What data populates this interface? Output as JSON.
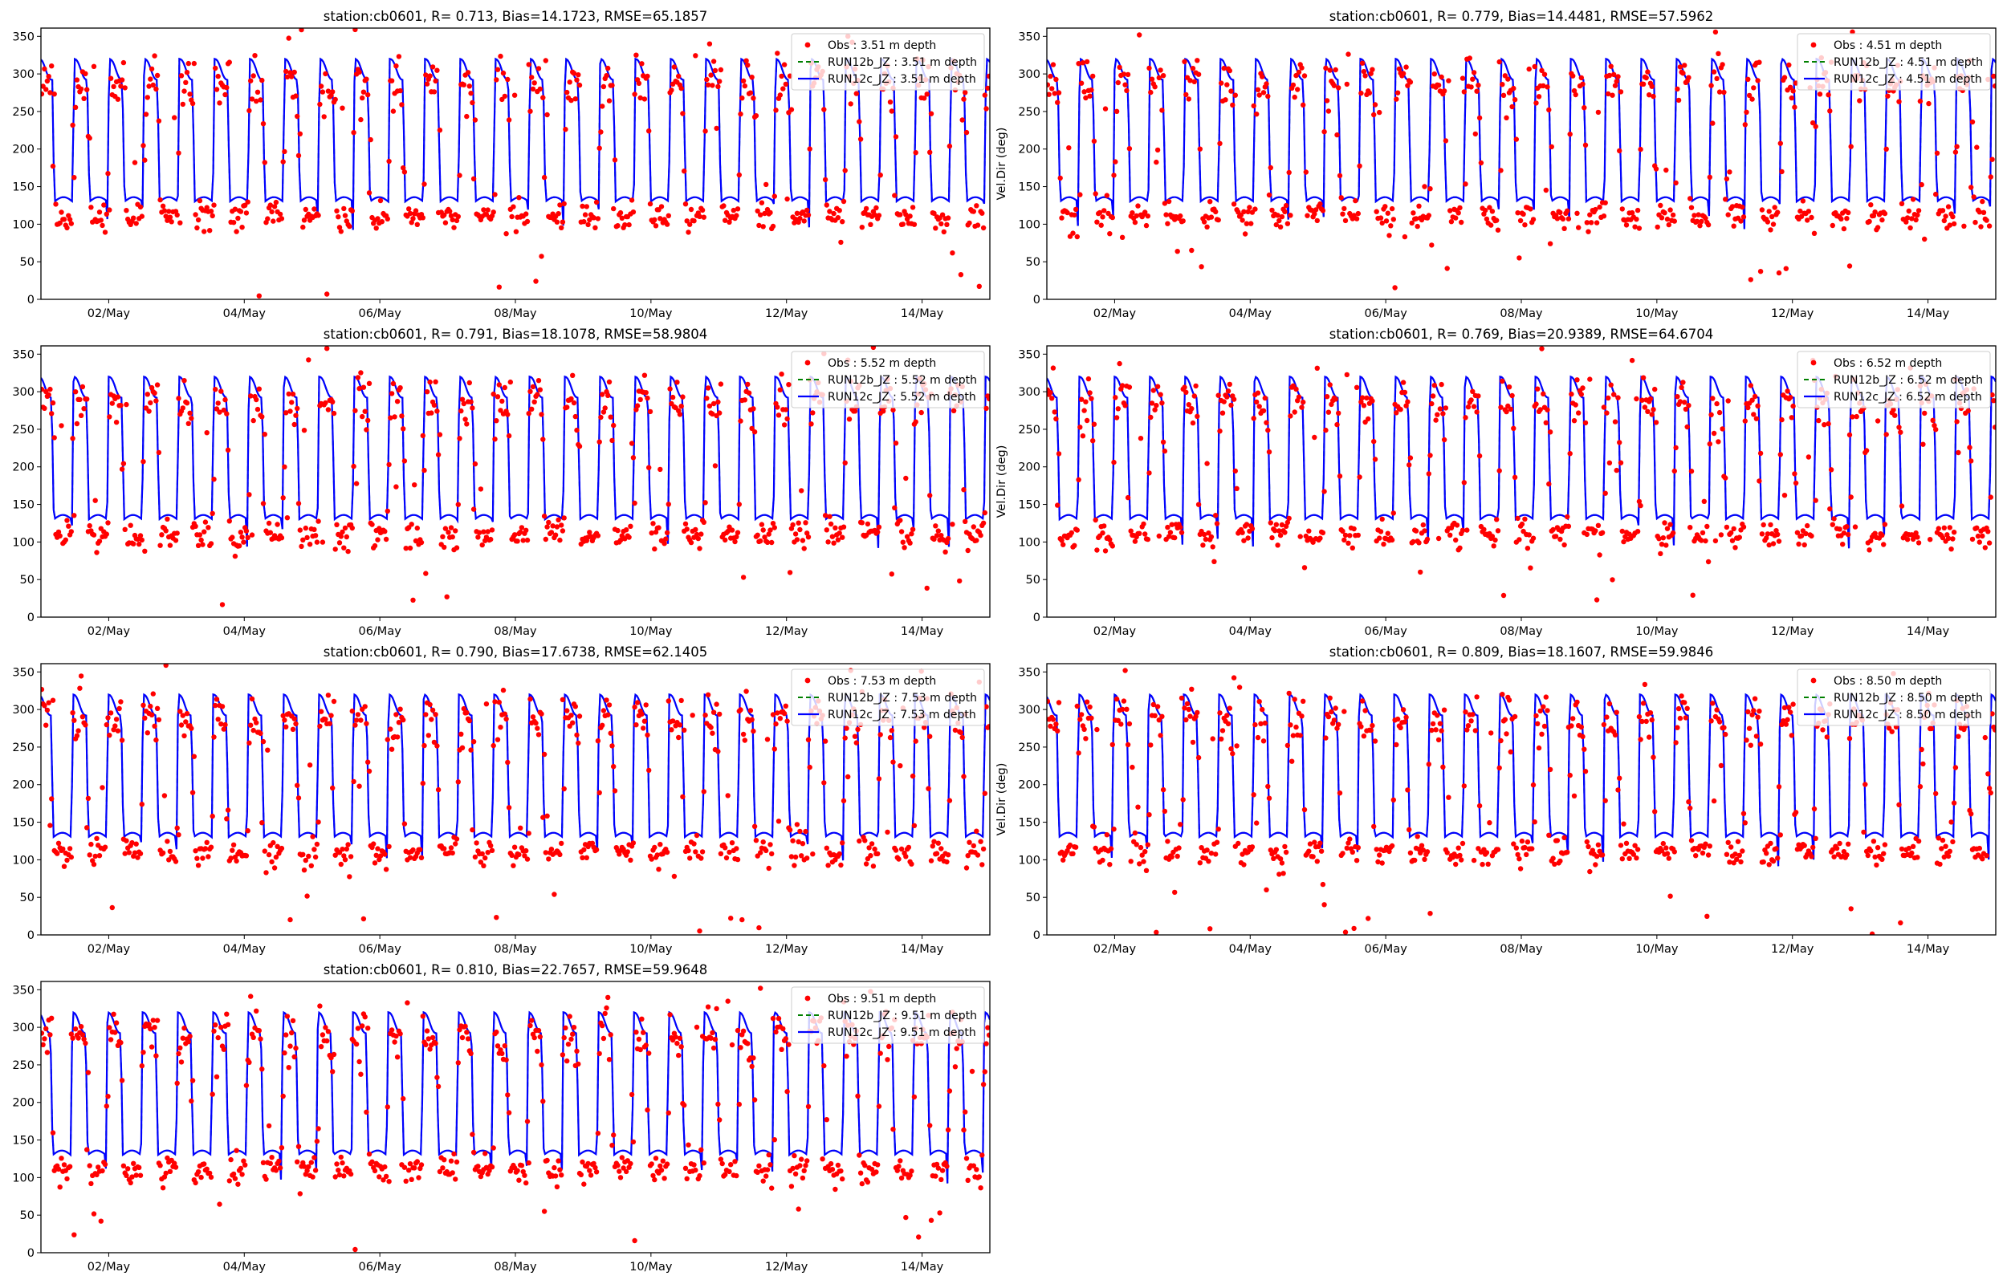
{
  "chart_data": {
    "type": "scatter+line",
    "shared": {
      "xlabel": "",
      "ylabel_right_column": "Vel.Dir (deg)",
      "x_unit": "hours since 01/May 00:00",
      "xlim": [
        0,
        336
      ],
      "ylim": [
        0,
        361
      ],
      "yticks": [
        0,
        50,
        100,
        150,
        200,
        250,
        300,
        350
      ],
      "xticks": [
        {
          "value": 24,
          "label": "02/May"
        },
        {
          "value": 72,
          "label": "04/May"
        },
        {
          "value": 120,
          "label": "06/May"
        },
        {
          "value": 168,
          "label": "08/May"
        },
        {
          "value": 216,
          "label": "10/May"
        },
        {
          "value": 264,
          "label": "12/May"
        },
        {
          "value": 312,
          "label": "14/May"
        }
      ],
      "legend_placement": "top-right",
      "grid": false,
      "tidal_period_hours": 12.42,
      "obs_typical": {
        "flood_deg": 278,
        "ebb_deg": 110
      },
      "model_typical": {
        "flood_peak_deg": 320,
        "flood_deg": 292,
        "ebb_deg": 130
      }
    },
    "colors": {
      "obs": "#ff0000",
      "run12b": "#008000",
      "run12c": "#0000ff"
    },
    "panels": [
      {
        "title": "station:cb0601, R= 0.713, Bias=14.1723, RMSE=65.1857",
        "depth": "3.51",
        "legend": [
          "Obs : 3.51 m depth",
          "RUN12b_JZ : 3.51 m depth",
          "RUN12c_JZ : 3.51 m depth"
        ],
        "phase_h": 0.0,
        "seed": 11
      },
      {
        "title": "station:cb0601, R= 0.779, Bias=14.4481, RMSE=57.5962",
        "depth": "4.51",
        "legend": [
          "Obs : 4.51 m depth",
          "RUN12b_JZ : 4.51 m depth",
          "RUN12c_JZ : 4.51 m depth"
        ],
        "phase_h": 0.1,
        "seed": 23
      },
      {
        "title": "station:cb0601, R= 0.791, Bias=18.1078, RMSE=58.9804",
        "depth": "5.52",
        "legend": [
          "Obs : 5.52 m depth",
          "RUN12b_JZ : 5.52 m depth",
          "RUN12c_JZ : 5.52 m depth"
        ],
        "phase_h": 0.2,
        "seed": 37
      },
      {
        "title": "station:cb0601, R= 0.769, Bias=20.9389, RMSE=64.6704",
        "depth": "6.52",
        "legend": [
          "Obs : 6.52 m depth",
          "RUN12b_JZ : 6.52 m depth",
          "RUN12c_JZ : 6.52 m depth"
        ],
        "phase_h": 0.3,
        "seed": 41
      },
      {
        "title": "station:cb0601, R= 0.790, Bias=17.6738, RMSE=62.1405",
        "depth": "7.53",
        "legend": [
          "Obs : 7.53 m depth",
          "RUN12b_JZ : 7.53 m depth",
          "RUN12c_JZ : 7.53 m depth"
        ],
        "phase_h": 0.4,
        "seed": 53
      },
      {
        "title": "station:cb0601, R= 0.809, Bias=18.1607, RMSE=59.9846",
        "depth": "8.50",
        "legend": [
          "Obs : 8.50 m depth",
          "RUN12b_JZ : 8.50 m depth",
          "RUN12c_JZ : 8.50 m depth"
        ],
        "phase_h": 0.5,
        "seed": 67
      },
      {
        "title": "station:cb0601, R= 0.810, Bias=22.7657, RMSE=59.9648",
        "depth": "9.51",
        "legend": [
          "Obs : 9.51 m depth",
          "RUN12b_JZ : 9.51 m depth",
          "RUN12c_JZ : 9.51 m depth"
        ],
        "phase_h": 0.6,
        "seed": 79
      }
    ]
  }
}
